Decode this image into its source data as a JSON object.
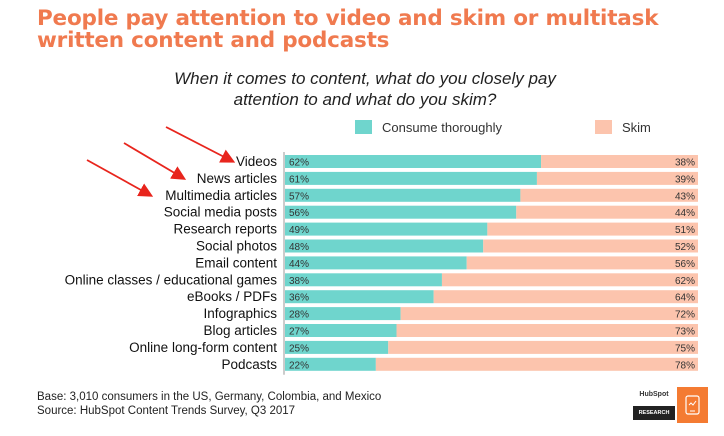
{
  "headline": "People pay attention to video and skim or multitask written content and podcasts",
  "footnotes": {
    "base": "Base: 3,010 consumers in the US, Germany, Colombia, and Mexico",
    "source": "Source: HubSpot Content Trends Survey, Q3 2017"
  },
  "brand": {
    "logo": "HubSpot",
    "label": "RESEARCH",
    "icon": "phone-icon"
  },
  "colors": {
    "consume": "#6fd5cd",
    "skim": "#fcc4ad",
    "headline": "#f07a4f",
    "arrow": "#e8251d",
    "brand_orange": "#f47b32"
  },
  "chart_data": {
    "type": "bar",
    "orientation": "horizontal",
    "stacked": true,
    "title": "When it comes to content, what do you closely pay attention to and what do you skim?",
    "categories": [
      "Videos",
      "News articles",
      "Multimedia articles",
      "Social media posts",
      "Research reports",
      "Social photos",
      "Email content",
      "Online classes / educational games",
      "eBooks / PDFs",
      "Infographics",
      "Blog articles",
      "Online long-form content",
      "Podcasts"
    ],
    "series": [
      {
        "name": "Consume thoroughly",
        "values": [
          62,
          61,
          57,
          56,
          49,
          48,
          44,
          38,
          36,
          28,
          27,
          25,
          22
        ],
        "labels": [
          "62%",
          "61%",
          "57%",
          "56%",
          "49%",
          "48%",
          "44%",
          "38%",
          "36%",
          "28%",
          "27%",
          "25%",
          "22%"
        ]
      },
      {
        "name": "Skim",
        "values": [
          38,
          39,
          43,
          44,
          51,
          52,
          56,
          62,
          64,
          72,
          73,
          75,
          78
        ],
        "labels": [
          "38%",
          "39%",
          "43%",
          "44%",
          "51%",
          "52%",
          "56%",
          "62%",
          "64%",
          "72%",
          "73%",
          "75%",
          "78%"
        ]
      }
    ],
    "xlim": [
      0,
      100
    ],
    "legend": "top",
    "grid": false,
    "annotations": {
      "arrows_point_to": [
        "Videos",
        "News articles",
        "Multimedia articles"
      ]
    }
  }
}
